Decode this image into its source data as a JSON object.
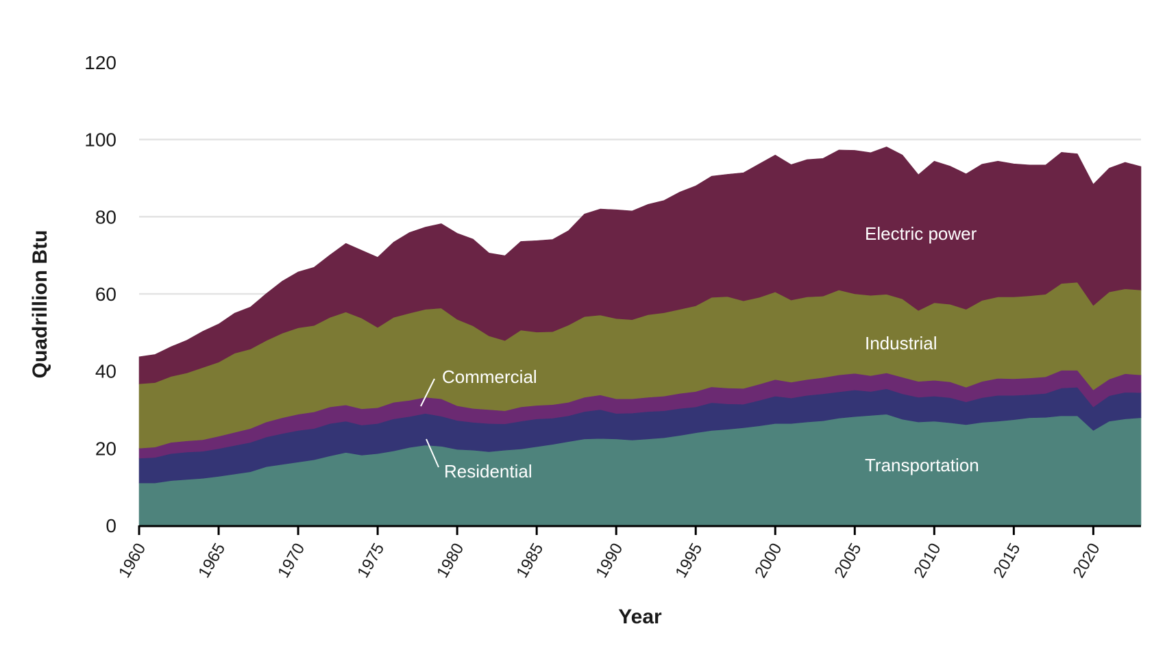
{
  "chart_data": {
    "type": "area",
    "stacked": true,
    "xlabel": "Year",
    "ylabel": "Quadrillion Btu",
    "ylim": [
      0,
      120
    ],
    "yticks": [
      0,
      20,
      40,
      60,
      80,
      100,
      120
    ],
    "xlim": [
      1960,
      2023
    ],
    "xticks": [
      1960,
      1965,
      1970,
      1975,
      1980,
      1985,
      1990,
      1995,
      2000,
      2005,
      2010,
      2015,
      2020
    ],
    "gridlines": [
      20,
      40,
      60,
      80,
      100
    ],
    "x": [
      1960,
      1961,
      1962,
      1963,
      1964,
      1965,
      1966,
      1967,
      1968,
      1969,
      1970,
      1971,
      1972,
      1973,
      1974,
      1975,
      1976,
      1977,
      1978,
      1979,
      1980,
      1981,
      1982,
      1983,
      1984,
      1985,
      1986,
      1987,
      1988,
      1989,
      1990,
      1991,
      1992,
      1993,
      1994,
      1995,
      1996,
      1997,
      1998,
      1999,
      2000,
      2001,
      2002,
      2003,
      2004,
      2005,
      2006,
      2007,
      2008,
      2009,
      2010,
      2011,
      2012,
      2013,
      2014,
      2015,
      2016,
      2017,
      2018,
      2019,
      2020,
      2021,
      2022,
      2023
    ],
    "series": [
      {
        "name": "Transportation",
        "color": "#4e837c",
        "values": [
          11.0,
          11.0,
          11.6,
          11.9,
          12.2,
          12.7,
          13.3,
          13.9,
          15.2,
          15.8,
          16.4,
          17.0,
          18.0,
          18.9,
          18.2,
          18.6,
          19.3,
          20.2,
          20.8,
          20.5,
          19.7,
          19.5,
          19.1,
          19.5,
          19.8,
          20.4,
          21.0,
          21.7,
          22.4,
          22.5,
          22.4,
          22.1,
          22.4,
          22.7,
          23.3,
          24.0,
          24.6,
          24.9,
          25.3,
          25.8,
          26.4,
          26.4,
          26.8,
          27.1,
          27.8,
          28.2,
          28.5,
          28.8,
          27.5,
          26.8,
          27.0,
          26.6,
          26.1,
          26.7,
          27.0,
          27.4,
          27.9,
          28.0,
          28.4,
          28.4,
          24.6,
          27.0,
          27.6,
          27.9
        ]
      },
      {
        "name": "Residential",
        "color": "#343575",
        "values": [
          6.4,
          6.6,
          7.0,
          7.1,
          7.0,
          7.2,
          7.4,
          7.6,
          7.7,
          8.0,
          8.2,
          8.1,
          8.4,
          8.1,
          7.8,
          7.8,
          8.3,
          8.0,
          8.2,
          7.8,
          7.5,
          7.2,
          7.3,
          6.8,
          7.2,
          7.2,
          6.8,
          6.7,
          7.1,
          7.5,
          6.6,
          7.0,
          7.1,
          7.0,
          7.0,
          6.7,
          7.2,
          6.6,
          6.1,
          6.6,
          7.1,
          6.6,
          6.9,
          7.0,
          6.8,
          6.9,
          6.2,
          6.6,
          6.6,
          6.4,
          6.5,
          6.5,
          5.9,
          6.4,
          6.7,
          6.3,
          6.0,
          6.2,
          7.2,
          7.4,
          6.1,
          6.6,
          6.9,
          6.5
        ]
      },
      {
        "name": "Commercial",
        "color": "#6b2a72",
        "values": [
          2.6,
          2.7,
          2.9,
          2.9,
          3.0,
          3.2,
          3.4,
          3.6,
          3.9,
          4.1,
          4.2,
          4.3,
          4.3,
          4.2,
          4.2,
          4.1,
          4.3,
          4.2,
          4.2,
          4.5,
          3.8,
          3.6,
          3.6,
          3.4,
          3.7,
          3.5,
          3.5,
          3.5,
          3.7,
          3.8,
          3.8,
          3.7,
          3.7,
          3.8,
          3.9,
          4.0,
          4.1,
          4.1,
          4.1,
          4.2,
          4.3,
          4.1,
          4.1,
          4.2,
          4.4,
          4.3,
          4.1,
          4.1,
          4.3,
          4.1,
          4.1,
          4.1,
          3.8,
          4.2,
          4.4,
          4.3,
          4.3,
          4.3,
          4.6,
          4.4,
          4.4,
          4.3,
          4.8,
          4.6
        ]
      },
      {
        "name": "Industrial",
        "color": "#7c7a34",
        "values": [
          16.7,
          16.7,
          17.1,
          17.6,
          18.7,
          19.2,
          20.5,
          20.6,
          21.1,
          21.9,
          22.4,
          22.4,
          23.2,
          24.1,
          23.5,
          20.8,
          22.0,
          22.6,
          22.8,
          23.5,
          22.4,
          21.4,
          19.1,
          18.2,
          19.9,
          19.0,
          18.9,
          20.0,
          20.9,
          20.7,
          20.8,
          20.5,
          21.4,
          21.6,
          21.8,
          22.2,
          23.2,
          23.7,
          22.7,
          22.5,
          22.7,
          21.3,
          21.4,
          21.1,
          22.0,
          20.6,
          20.8,
          20.4,
          20.3,
          18.4,
          20.1,
          20.1,
          20.2,
          21.0,
          21.1,
          21.2,
          21.3,
          21.4,
          22.5,
          22.8,
          21.9,
          22.6,
          22.0,
          22.0
        ]
      },
      {
        "name": "Electric power",
        "color": "#6a2445",
        "values": [
          7.0,
          7.3,
          7.7,
          8.5,
          9.4,
          9.9,
          10.4,
          10.9,
          12.2,
          13.5,
          14.5,
          15.1,
          16.2,
          17.8,
          17.6,
          18.2,
          19.5,
          20.9,
          21.3,
          21.9,
          22.3,
          22.5,
          21.5,
          22.0,
          23.0,
          23.7,
          23.9,
          24.5,
          26.6,
          27.5,
          28.2,
          28.2,
          28.6,
          29.1,
          30.4,
          31.1,
          31.4,
          31.7,
          33.2,
          34.6,
          35.5,
          35.1,
          35.6,
          35.7,
          36.3,
          37.2,
          37.0,
          38.2,
          37.3,
          35.2,
          36.7,
          35.8,
          35.1,
          35.3,
          35.2,
          34.5,
          33.9,
          33.5,
          34.0,
          33.3,
          31.4,
          32.1,
          32.8,
          32.0
        ]
      }
    ],
    "annotations": [
      {
        "series": "Electric power",
        "text": "Electric power"
      },
      {
        "series": "Industrial",
        "text": "Industrial"
      },
      {
        "series": "Commercial",
        "text": "Commercial"
      },
      {
        "series": "Residential",
        "text": "Residential"
      },
      {
        "series": "Transportation",
        "text": "Transportation"
      }
    ]
  }
}
